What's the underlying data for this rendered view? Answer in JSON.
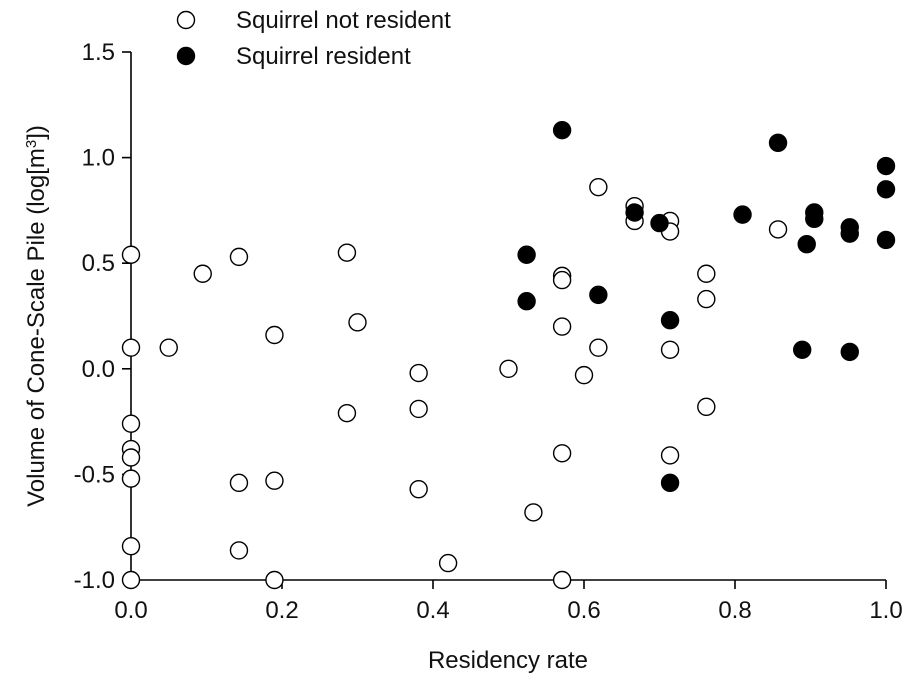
{
  "chart_data": {
    "type": "scatter",
    "xlabel": "Residency rate",
    "ylabel": {
      "prefix": "Volume of Cone-Scale Pile (log[m",
      "sup": "3",
      "suffix": "])"
    },
    "xlim": [
      0.0,
      1.0
    ],
    "ylim": [
      -1.0,
      1.5
    ],
    "xticks": [
      "0.0",
      "0.2",
      "0.4",
      "0.6",
      "0.8",
      "1.0"
    ],
    "yticks": [
      "-1.0",
      "-0.5",
      "0.0",
      "0.5",
      "1.0",
      "1.5"
    ],
    "grid": false,
    "legend_position": "top-left",
    "series": [
      {
        "name": "Squirrel not resident",
        "marker": "open-circle",
        "color": "#000000",
        "points": [
          [
            0.0,
            0.54
          ],
          [
            0.0,
            0.1
          ],
          [
            0.0,
            -0.26
          ],
          [
            0.0,
            -0.38
          ],
          [
            0.0,
            -0.42
          ],
          [
            0.0,
            -0.52
          ],
          [
            0.0,
            -0.84
          ],
          [
            0.0,
            -1.0
          ],
          [
            0.05,
            0.1
          ],
          [
            0.095,
            0.45
          ],
          [
            0.143,
            0.53
          ],
          [
            0.143,
            -0.54
          ],
          [
            0.143,
            -0.86
          ],
          [
            0.19,
            0.16
          ],
          [
            0.19,
            -0.53
          ],
          [
            0.19,
            -1.0
          ],
          [
            0.286,
            0.55
          ],
          [
            0.286,
            -0.21
          ],
          [
            0.3,
            0.22
          ],
          [
            0.381,
            -0.02
          ],
          [
            0.381,
            -0.19
          ],
          [
            0.381,
            -0.57
          ],
          [
            0.42,
            -0.92
          ],
          [
            0.5,
            0.0
          ],
          [
            0.533,
            -0.68
          ],
          [
            0.571,
            0.44
          ],
          [
            0.571,
            0.42
          ],
          [
            0.571,
            0.2
          ],
          [
            0.571,
            -0.4
          ],
          [
            0.571,
            -1.0
          ],
          [
            0.6,
            -0.03
          ],
          [
            0.619,
            0.86
          ],
          [
            0.619,
            0.1
          ],
          [
            0.667,
            0.77
          ],
          [
            0.667,
            0.7
          ],
          [
            0.714,
            0.7
          ],
          [
            0.714,
            0.65
          ],
          [
            0.714,
            0.09
          ],
          [
            0.714,
            -0.41
          ],
          [
            0.762,
            0.45
          ],
          [
            0.762,
            0.33
          ],
          [
            0.762,
            -0.18
          ],
          [
            0.857,
            0.66
          ]
        ]
      },
      {
        "name": "Squirrel resident",
        "marker": "filled-circle",
        "color": "#000000",
        "points": [
          [
            0.524,
            0.54
          ],
          [
            0.524,
            0.32
          ],
          [
            0.571,
            1.13
          ],
          [
            0.619,
            0.35
          ],
          [
            0.667,
            0.74
          ],
          [
            0.7,
            0.69
          ],
          [
            0.714,
            0.23
          ],
          [
            0.714,
            -0.54
          ],
          [
            0.81,
            0.73
          ],
          [
            0.857,
            1.07
          ],
          [
            0.889,
            0.09
          ],
          [
            0.895,
            0.59
          ],
          [
            0.905,
            0.74
          ],
          [
            0.905,
            0.71
          ],
          [
            0.952,
            0.67
          ],
          [
            0.952,
            0.64
          ],
          [
            0.952,
            0.08
          ],
          [
            1.0,
            0.96
          ],
          [
            1.0,
            0.85
          ],
          [
            1.0,
            0.61
          ]
        ]
      }
    ]
  }
}
